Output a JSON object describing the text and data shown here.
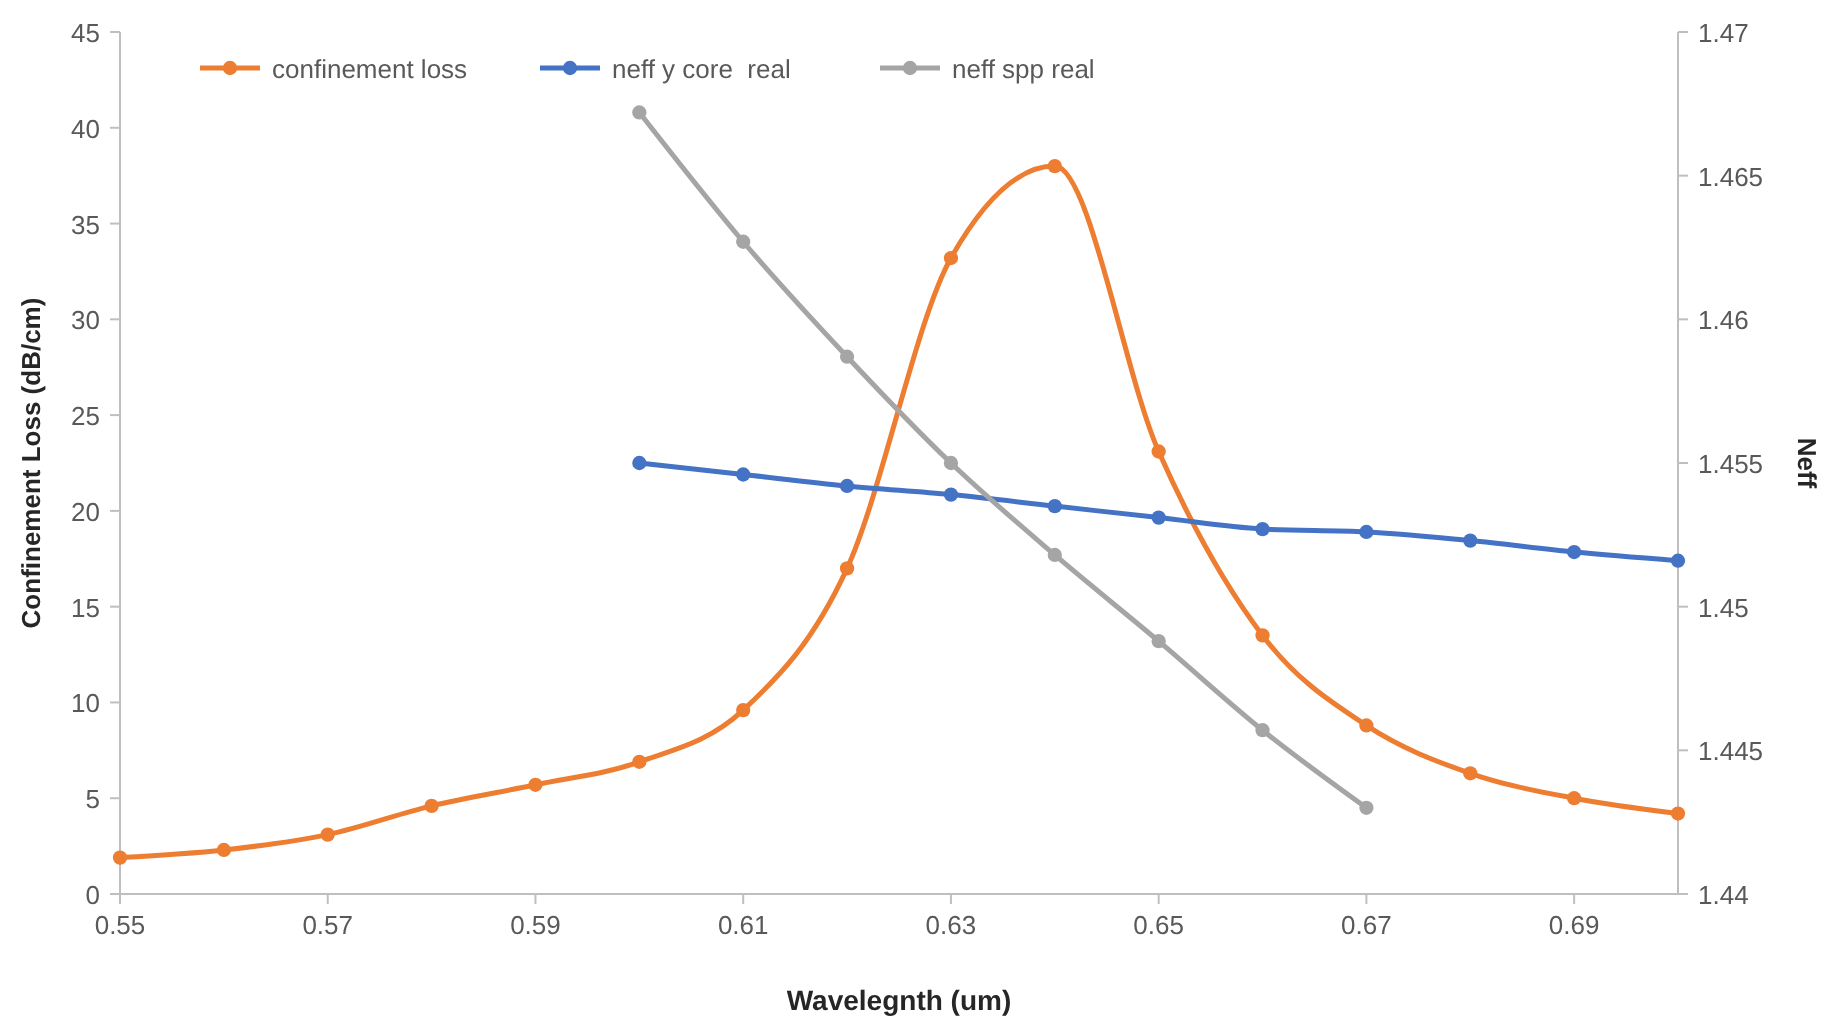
{
  "chart_data": {
    "type": "line",
    "xlabel": "Wavelegnth (um)",
    "ylabel": "Confinement Loss (dB/cm)",
    "y2label": "Neff",
    "xlim": [
      0.55,
      0.7
    ],
    "xticks": [
      0.55,
      0.57,
      0.59,
      0.61,
      0.63,
      0.65,
      0.67,
      0.69
    ],
    "ylim": [
      0,
      45
    ],
    "yticks": [
      0,
      5,
      10,
      15,
      20,
      25,
      30,
      35,
      40,
      45
    ],
    "y2lim": [
      1.44,
      1.47
    ],
    "y2ticks": [
      1.44,
      1.445,
      1.45,
      1.455,
      1.46,
      1.465,
      1.47
    ],
    "marker": "circle",
    "legend": "top left",
    "grid": false,
    "series": [
      {
        "name": "confinement loss",
        "color": "#ed7d31",
        "x": [
          0.55,
          0.56,
          0.57,
          0.58,
          0.59,
          0.6,
          0.61,
          0.62,
          0.63,
          0.64,
          0.65,
          0.66,
          0.67,
          0.68,
          0.69,
          0.7
        ],
        "values": [
          1.9,
          2.3,
          3.1,
          4.6,
          5.7,
          6.9,
          9.6,
          17.0,
          33.2,
          38.0,
          23.1,
          13.5,
          8.8,
          6.3,
          5.0,
          4.2
        ]
      },
      {
        "name": "neff y core  real",
        "color": "#4472c4",
        "axis": "y2",
        "x": [
          0.6,
          0.61,
          0.62,
          0.63,
          0.64,
          0.65,
          0.66,
          0.67,
          0.68,
          0.69,
          0.7
        ],
        "values": [
          1.455,
          1.4546,
          1.4542,
          1.4539,
          1.4535,
          1.4531,
          1.4527,
          1.4526,
          1.4523,
          1.4519,
          1.4516
        ]
      },
      {
        "name": "neff spp real",
        "color": "#a5a5a5",
        "axis": "y2",
        "x": [
          0.6,
          0.61,
          0.62,
          0.63,
          0.64,
          0.65,
          0.66,
          0.67
        ],
        "values": [
          1.4672,
          1.4627,
          1.4587,
          1.455,
          1.4518,
          1.4488,
          1.4457,
          1.443
        ]
      }
    ]
  }
}
